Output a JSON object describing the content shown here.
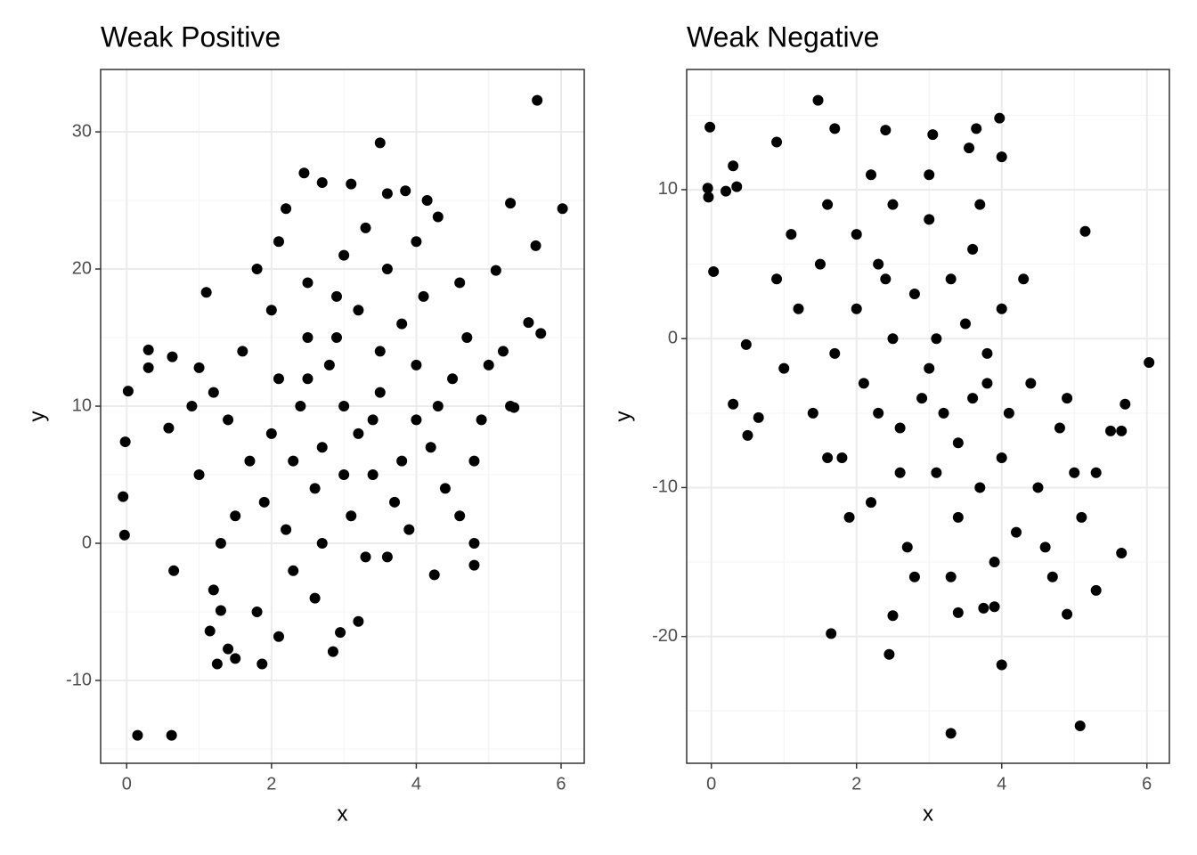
{
  "chart_data": [
    {
      "type": "scatter",
      "title": "Weak Positive",
      "x_label": "x",
      "y_label": "y",
      "color": "#000000",
      "grid": true,
      "xlim": [
        -0.36,
        6.32
      ],
      "ylim": [
        -16.04,
        34.55
      ],
      "xticks": [
        0,
        2,
        4,
        6
      ],
      "yticks": [
        -10,
        0,
        10,
        20,
        30
      ],
      "minor_xticks": [
        1,
        3,
        5
      ],
      "minor_yticks": [
        -15,
        -5,
        5,
        15,
        25
      ],
      "x": [
        0.15,
        0.62,
        5.67,
        3.5,
        6.02,
        -0.05,
        -0.03,
        0.02,
        -0.02,
        0.3,
        0.3,
        0.58,
        0.63,
        0.65,
        1.25,
        1.87,
        2.85,
        3.2,
        2.95,
        1.15,
        2.1,
        4.8,
        4.8,
        4.25,
        5.3,
        5.65,
        5.72,
        5.55,
        2.45,
        2.7,
        3.1,
        3.6,
        3.85,
        4.15,
        4.3,
        2.2,
        5.1,
        5.3,
        5.35,
        1.1,
        0.9,
        1.0,
        1.5,
        1.4,
        1.8,
        1.2,
        1.3,
        2.1,
        2.5,
        3.0,
        3.2,
        2.8,
        3.5,
        3.8,
        4.0,
        2.3,
        2.6,
        3.1,
        3.4,
        3.7,
        4.2,
        4.5,
        4.7,
        4.1,
        3.6,
        3.0,
        2.5,
        2.0,
        1.6,
        1.4,
        1.7,
        1.9,
        2.2,
        2.7,
        3.3,
        3.9,
        4.4,
        4.9,
        5.0,
        4.6,
        4.0,
        3.3,
        2.9,
        2.4,
        2.0,
        1.2,
        1.0,
        1.5,
        2.3,
        2.6,
        3.5,
        3.2,
        2.7,
        3.8,
        4.3,
        4.8,
        3.0,
        2.1,
        1.8,
        3.6,
        4.0,
        2.9,
        3.4,
        2.5,
        1.3,
        4.6,
        5.2
      ],
      "values": [
        -14,
        -14,
        32.3,
        29.2,
        24.4,
        3.4,
        0.6,
        11.1,
        7.4,
        14.1,
        12.8,
        8.4,
        13.6,
        -2,
        -8.8,
        -8.8,
        -7.9,
        -5.7,
        -6.5,
        -6.4,
        -6.8,
        -1.6,
        0,
        -2.3,
        24.8,
        21.7,
        15.3,
        16.1,
        27,
        26.3,
        26.2,
        25.5,
        25.7,
        25,
        23.8,
        24.4,
        19.9,
        10,
        9.9,
        18.3,
        10,
        12.8,
        -8.4,
        -7.7,
        -5,
        -3.4,
        -4.9,
        12,
        15,
        10,
        8,
        13,
        11,
        16,
        9,
        6,
        4,
        2,
        5,
        3,
        7,
        12,
        15,
        18,
        20,
        21,
        19,
        17,
        14,
        9,
        6,
        3,
        1,
        0,
        -1,
        1,
        4,
        9,
        13,
        19,
        22,
        23,
        18,
        10,
        8,
        11,
        5,
        2,
        -2,
        -4,
        14,
        17,
        7,
        6,
        10,
        6,
        5,
        22,
        20,
        -1,
        13,
        15,
        9,
        12,
        0,
        2,
        14
      ]
    },
    {
      "type": "scatter",
      "title": "Weak Negative",
      "x_label": "x",
      "y_label": "y",
      "color": "#000000",
      "grid": true,
      "xlim": [
        -0.34,
        6.31
      ],
      "ylim": [
        -28.51,
        18.07
      ],
      "xticks": [
        0,
        2,
        4,
        6
      ],
      "yticks": [
        -20,
        -10,
        0,
        10
      ],
      "minor_xticks": [
        1,
        3,
        5
      ],
      "minor_yticks": [
        -25,
        -15,
        -5,
        5,
        15
      ],
      "x": [
        -0.02,
        -0.05,
        -0.04,
        0.2,
        0.3,
        0.35,
        0.03,
        0.3,
        0.5,
        0.48,
        0.65,
        1.47,
        1.65,
        2.45,
        2.5,
        3.3,
        4.0,
        5.08,
        3.97,
        4.0,
        3.05,
        2.4,
        6.03,
        5.15,
        5.65,
        5.3,
        4.9,
        3.4,
        3.75,
        5.7,
        5.65,
        5.5,
        0.9,
        1.7,
        3.55,
        3.65,
        2.5,
        3.0,
        3.2,
        2.8,
        3.5,
        3.8,
        4.0,
        2.3,
        2.0,
        1.7,
        2.6,
        3.1,
        3.4,
        3.7,
        4.2,
        4.5,
        4.8,
        4.4,
        4.0,
        3.6,
        3.0,
        2.5,
        2.0,
        1.5,
        1.2,
        1.0,
        1.4,
        1.8,
        2.2,
        2.7,
        3.3,
        3.9,
        4.6,
        5.0,
        4.9,
        4.3,
        3.7,
        3.0,
        2.4,
        2.1,
        2.9,
        3.4,
        3.8,
        4.1,
        1.1,
        0.9,
        1.6,
        2.2,
        3.3,
        2.6,
        3.1,
        3.9,
        2.8,
        4.7,
        5.1,
        5.3,
        1.9,
        1.6,
        3.6,
        2.3
      ],
      "values": [
        14.2,
        10.1,
        9.5,
        9.9,
        11.6,
        10.2,
        4.5,
        -4.4,
        -6.5,
        -0.4,
        -5.3,
        16,
        -19.8,
        -21.2,
        -18.6,
        -26.5,
        -21.9,
        -26,
        14.8,
        12.2,
        13.7,
        14,
        -1.6,
        7.2,
        -14.4,
        -16.9,
        -18.5,
        -18.4,
        -18.1,
        -4.4,
        -6.2,
        -6.2,
        13.2,
        14.1,
        12.8,
        14.1,
        0,
        -2,
        -5,
        3,
        1,
        -3,
        -8,
        5,
        2,
        -1,
        -6,
        -9,
        -12,
        -10,
        -13,
        -10,
        -6,
        -3,
        2,
        6,
        8,
        9,
        7,
        5,
        2,
        -2,
        -5,
        -8,
        -11,
        -14,
        -16,
        -15,
        -14,
        -9,
        -4,
        4,
        9,
        11,
        4,
        -3,
        -4,
        -7,
        -1,
        -5,
        7,
        4,
        9,
        11,
        4,
        -9,
        0,
        -18,
        -16,
        -16,
        -12,
        -9,
        -12,
        -8,
        -4,
        -5
      ]
    }
  ]
}
